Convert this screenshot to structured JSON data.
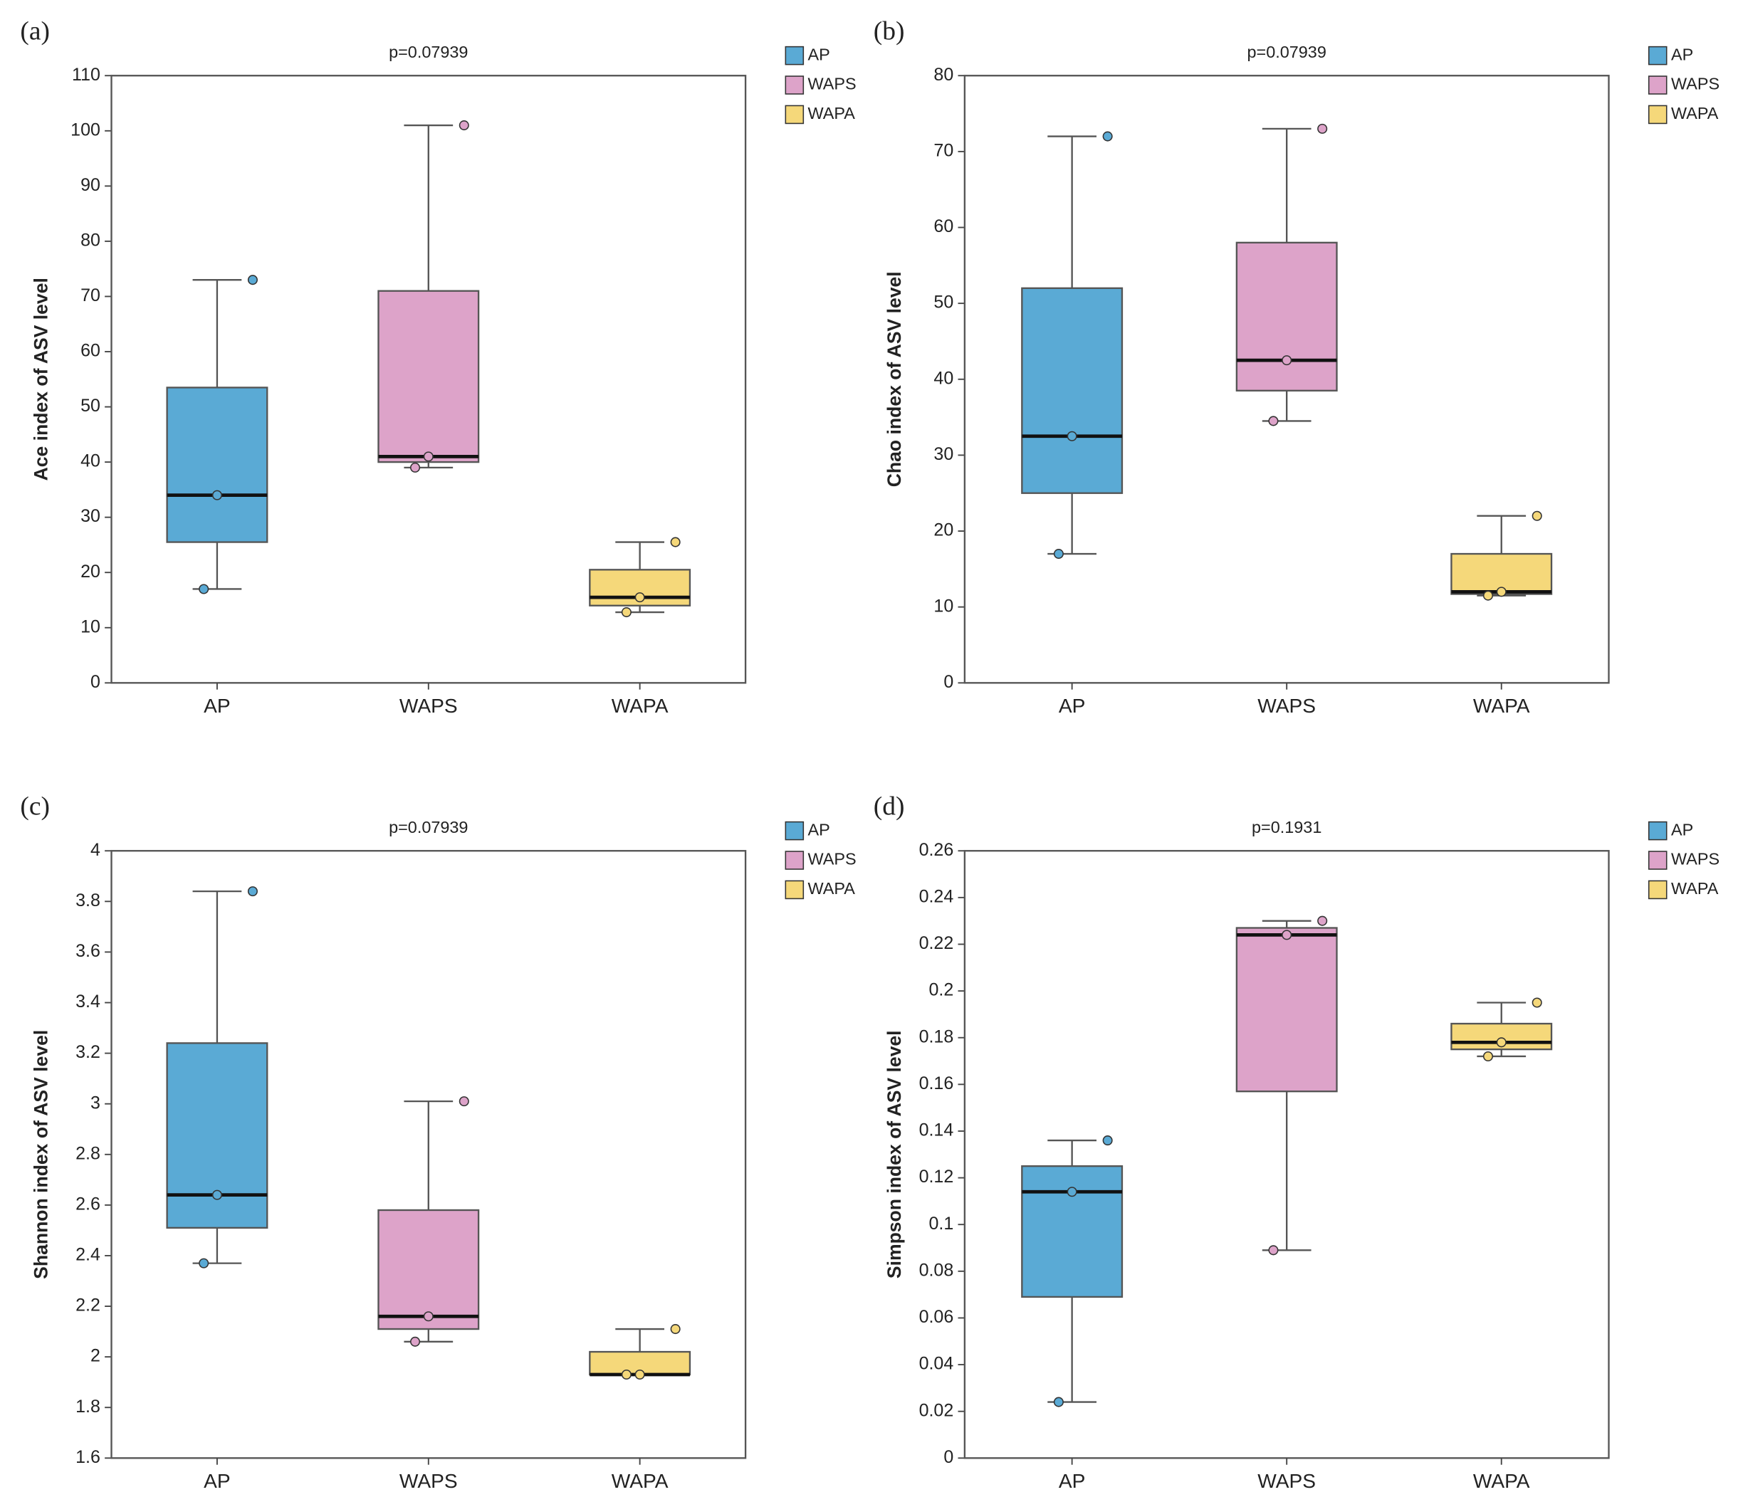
{
  "chart_data": [
    {
      "type": "box",
      "label": "(a)",
      "title": "p=0.07939",
      "y_label": "Ace index of ASV level",
      "categories": [
        "AP",
        "WAPS",
        "WAPA"
      ],
      "ylim": [
        0,
        110
      ],
      "yticks": [
        0,
        10,
        20,
        30,
        40,
        50,
        60,
        70,
        80,
        90,
        100,
        110
      ],
      "series": [
        {
          "name": "AP",
          "color": "#5aaad5",
          "min": 17,
          "q1": 25.5,
          "median": 34,
          "q3": 53.5,
          "max": 73,
          "points": [
            73,
            34,
            17
          ]
        },
        {
          "name": "WAPS",
          "color": "#dda3c9",
          "min": 39,
          "q1": 40,
          "median": 41,
          "q3": 71,
          "max": 101,
          "points": [
            101,
            41,
            39
          ]
        },
        {
          "name": "WAPA",
          "color": "#f5d87a",
          "min": 12.8,
          "q1": 14,
          "median": 15.5,
          "q3": 20.5,
          "max": 25.5,
          "points": [
            25.5,
            15.5,
            12.8
          ]
        }
      ]
    },
    {
      "type": "box",
      "label": "(b)",
      "title": "p=0.07939",
      "y_label": "Chao index of ASV level",
      "categories": [
        "AP",
        "WAPS",
        "WAPA"
      ],
      "ylim": [
        0,
        80
      ],
      "yticks": [
        0,
        10,
        20,
        30,
        40,
        50,
        60,
        70,
        80
      ],
      "series": [
        {
          "name": "AP",
          "color": "#5aaad5",
          "min": 17,
          "q1": 25,
          "median": 32.5,
          "q3": 52,
          "max": 72,
          "points": [
            72,
            32.5,
            17
          ]
        },
        {
          "name": "WAPS",
          "color": "#dda3c9",
          "min": 34.5,
          "q1": 38.5,
          "median": 42.5,
          "q3": 58,
          "max": 73,
          "points": [
            73,
            42.5,
            34.5
          ]
        },
        {
          "name": "WAPA",
          "color": "#f5d87a",
          "min": 11.5,
          "q1": 11.7,
          "median": 12,
          "q3": 17,
          "max": 22,
          "points": [
            22,
            12,
            11.5
          ]
        }
      ]
    },
    {
      "type": "box",
      "label": "(c)",
      "title": "p=0.07939",
      "y_label": "Shannon index of ASV level",
      "categories": [
        "AP",
        "WAPS",
        "WAPA"
      ],
      "ylim": [
        1.6,
        4
      ],
      "yticks": [
        1.6,
        1.8,
        2,
        2.2,
        2.4,
        2.6,
        2.8,
        3,
        3.2,
        3.4,
        3.6,
        3.8,
        4
      ],
      "series": [
        {
          "name": "AP",
          "color": "#5aaad5",
          "min": 2.37,
          "q1": 2.51,
          "median": 2.64,
          "q3": 3.24,
          "max": 3.84,
          "points": [
            3.84,
            2.64,
            2.37
          ]
        },
        {
          "name": "WAPS",
          "color": "#dda3c9",
          "min": 2.06,
          "q1": 2.11,
          "median": 2.16,
          "q3": 2.58,
          "max": 3.01,
          "points": [
            3.01,
            2.16,
            2.06
          ]
        },
        {
          "name": "WAPA",
          "color": "#f5d87a",
          "min": 1.93,
          "q1": 1.93,
          "median": 1.93,
          "q3": 2.02,
          "max": 2.11,
          "points": [
            2.11,
            1.93,
            1.93
          ]
        }
      ]
    },
    {
      "type": "box",
      "label": "(d)",
      "title": "p=0.1931",
      "y_label": "Simpson index of ASV level",
      "categories": [
        "AP",
        "WAPS",
        "WAPA"
      ],
      "ylim": [
        0,
        0.26
      ],
      "yticks": [
        0,
        0.02,
        0.04,
        0.06,
        0.08,
        0.1,
        0.12,
        0.14,
        0.16,
        0.18,
        0.2,
        0.22,
        0.24,
        0.26
      ],
      "series": [
        {
          "name": "AP",
          "color": "#5aaad5",
          "min": 0.024,
          "q1": 0.069,
          "median": 0.114,
          "q3": 0.125,
          "max": 0.136,
          "points": [
            0.136,
            0.114,
            0.024
          ]
        },
        {
          "name": "WAPS",
          "color": "#dda3c9",
          "min": 0.089,
          "q1": 0.157,
          "median": 0.224,
          "q3": 0.227,
          "max": 0.23,
          "points": [
            0.23,
            0.224,
            0.089
          ]
        },
        {
          "name": "WAPA",
          "color": "#f5d87a",
          "min": 0.172,
          "q1": 0.175,
          "median": 0.178,
          "q3": 0.186,
          "max": 0.195,
          "points": [
            0.195,
            0.178,
            0.172
          ]
        }
      ]
    }
  ]
}
